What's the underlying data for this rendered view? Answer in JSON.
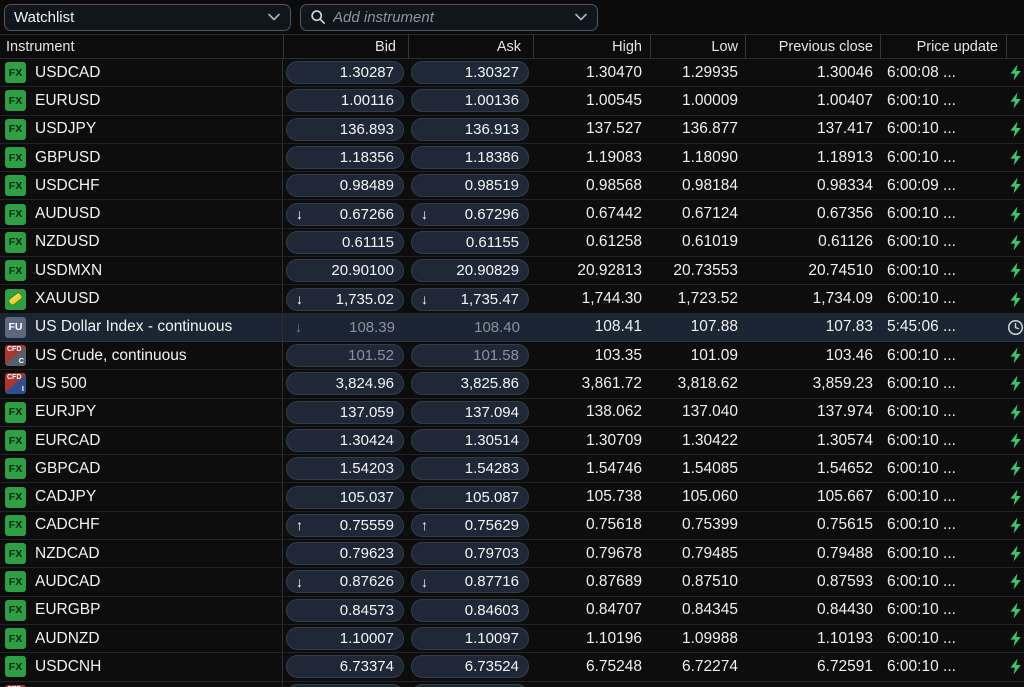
{
  "toolbar": {
    "watchlist_label": "Watchlist",
    "search_placeholder": "Add instrument"
  },
  "colors": {
    "fx_badge_green": "#2f9e44",
    "live_bolt_green": "#3ec46d",
    "stale_text_gray": "#8a929e",
    "selected_row_bg": "#1c2633",
    "quote_button_bg": "#1e2836",
    "cfd_badge_red": "#a83732",
    "cfd_badge_blue": "#2f4d8f",
    "fu_badge_slate": "#5d6880",
    "gold_bar_yellow": "#f2cf1f"
  },
  "table": {
    "columns": [
      "Instrument",
      "Bid",
      "Ask",
      "High",
      "Low",
      "Previous close",
      "Price update"
    ],
    "rows": [
      {
        "badge": {
          "type": "fx",
          "text": "FX"
        },
        "name": "USDCAD",
        "bid_arrow": "",
        "bid": "1.30287",
        "ask_arrow": "",
        "ask": "1.30327",
        "high": "1.30470",
        "low": "1.29935",
        "prev_close": "1.30046",
        "time": "6:00:08 ...",
        "status": "live",
        "stale": false,
        "flat": false,
        "selected": false
      },
      {
        "badge": {
          "type": "fx",
          "text": "FX"
        },
        "name": "EURUSD",
        "bid_arrow": "",
        "bid": "1.00116",
        "ask_arrow": "",
        "ask": "1.00136",
        "high": "1.00545",
        "low": "1.00009",
        "prev_close": "1.00407",
        "time": "6:00:10 ...",
        "status": "live",
        "stale": false,
        "flat": false,
        "selected": false
      },
      {
        "badge": {
          "type": "fx",
          "text": "FX"
        },
        "name": "USDJPY",
        "bid_arrow": "",
        "bid": "136.893",
        "ask_arrow": "",
        "ask": "136.913",
        "high": "137.527",
        "low": "136.877",
        "prev_close": "137.417",
        "time": "6:00:10 ...",
        "status": "live",
        "stale": false,
        "flat": false,
        "selected": false
      },
      {
        "badge": {
          "type": "fx",
          "text": "FX"
        },
        "name": "GBPUSD",
        "bid_arrow": "",
        "bid": "1.18356",
        "ask_arrow": "",
        "ask": "1.18386",
        "high": "1.19083",
        "low": "1.18090",
        "prev_close": "1.18913",
        "time": "6:00:10 ...",
        "status": "live",
        "stale": false,
        "flat": false,
        "selected": false
      },
      {
        "badge": {
          "type": "fx",
          "text": "FX"
        },
        "name": "USDCHF",
        "bid_arrow": "",
        "bid": "0.98489",
        "ask_arrow": "",
        "ask": "0.98519",
        "high": "0.98568",
        "low": "0.98184",
        "prev_close": "0.98334",
        "time": "6:00:09 ...",
        "status": "live",
        "stale": false,
        "flat": false,
        "selected": false
      },
      {
        "badge": {
          "type": "fx",
          "text": "FX"
        },
        "name": "AUDUSD",
        "bid_arrow": "down",
        "bid": "0.67266",
        "ask_arrow": "down",
        "ask": "0.67296",
        "high": "0.67442",
        "low": "0.67124",
        "prev_close": "0.67356",
        "time": "6:00:10 ...",
        "status": "live",
        "stale": false,
        "flat": false,
        "selected": false
      },
      {
        "badge": {
          "type": "fx",
          "text": "FX"
        },
        "name": "NZDUSD",
        "bid_arrow": "",
        "bid": "0.61115",
        "ask_arrow": "",
        "ask": "0.61155",
        "high": "0.61258",
        "low": "0.61019",
        "prev_close": "0.61126",
        "time": "6:00:10 ...",
        "status": "live",
        "stale": false,
        "flat": false,
        "selected": false
      },
      {
        "badge": {
          "type": "fx",
          "text": "FX"
        },
        "name": "USDMXN",
        "bid_arrow": "",
        "bid": "20.90100",
        "ask_arrow": "",
        "ask": "20.90829",
        "high": "20.92813",
        "low": "20.73553",
        "prev_close": "20.74510",
        "time": "6:00:10 ...",
        "status": "live",
        "stale": false,
        "flat": false,
        "selected": false
      },
      {
        "badge": {
          "type": "gold"
        },
        "name": "XAUUSD",
        "bid_arrow": "down",
        "bid": "1,735.02",
        "ask_arrow": "down",
        "ask": "1,735.47",
        "high": "1,744.30",
        "low": "1,723.52",
        "prev_close": "1,734.09",
        "time": "6:00:10 ...",
        "status": "live",
        "stale": false,
        "flat": false,
        "selected": false
      },
      {
        "badge": {
          "type": "fu",
          "text": "FU"
        },
        "name": "US Dollar Index - continuous",
        "bid_arrow": "down",
        "bid": "108.39",
        "ask_arrow": "",
        "ask": "108.40",
        "high": "108.41",
        "low": "107.88",
        "prev_close": "107.83",
        "time": "5:45:06 ...",
        "status": "delayed",
        "stale": true,
        "flat": true,
        "selected": true
      },
      {
        "badge": {
          "type": "cfd",
          "text": "CFD",
          "sub": "C"
        },
        "name": "US Crude, continuous",
        "bid_arrow": "",
        "bid": "101.52",
        "ask_arrow": "",
        "ask": "101.58",
        "high": "103.35",
        "low": "101.09",
        "prev_close": "103.46",
        "time": "6:00:10 ...",
        "status": "live",
        "stale": true,
        "flat": false,
        "selected": false
      },
      {
        "badge": {
          "type": "cfd",
          "text": "CFD",
          "sub": "I"
        },
        "name": "US 500",
        "bid_arrow": "",
        "bid": "3,824.96",
        "ask_arrow": "",
        "ask": "3,825.86",
        "high": "3,861.72",
        "low": "3,818.62",
        "prev_close": "3,859.23",
        "time": "6:00:10 ...",
        "status": "live",
        "stale": false,
        "flat": false,
        "selected": false
      },
      {
        "badge": {
          "type": "fx",
          "text": "FX"
        },
        "name": "EURJPY",
        "bid_arrow": "",
        "bid": "137.059",
        "ask_arrow": "",
        "ask": "137.094",
        "high": "138.062",
        "low": "137.040",
        "prev_close": "137.974",
        "time": "6:00:10 ...",
        "status": "live",
        "stale": false,
        "flat": false,
        "selected": false
      },
      {
        "badge": {
          "type": "fx",
          "text": "FX"
        },
        "name": "EURCAD",
        "bid_arrow": "",
        "bid": "1.30424",
        "ask_arrow": "",
        "ask": "1.30514",
        "high": "1.30709",
        "low": "1.30422",
        "prev_close": "1.30574",
        "time": "6:00:10 ...",
        "status": "live",
        "stale": false,
        "flat": false,
        "selected": false
      },
      {
        "badge": {
          "type": "fx",
          "text": "FX"
        },
        "name": "GBPCAD",
        "bid_arrow": "",
        "bid": "1.54203",
        "ask_arrow": "",
        "ask": "1.54283",
        "high": "1.54746",
        "low": "1.54085",
        "prev_close": "1.54652",
        "time": "6:00:10 ...",
        "status": "live",
        "stale": false,
        "flat": false,
        "selected": false
      },
      {
        "badge": {
          "type": "fx",
          "text": "FX"
        },
        "name": "CADJPY",
        "bid_arrow": "",
        "bid": "105.037",
        "ask_arrow": "",
        "ask": "105.087",
        "high": "105.738",
        "low": "105.060",
        "prev_close": "105.667",
        "time": "6:00:10 ...",
        "status": "live",
        "stale": false,
        "flat": false,
        "selected": false
      },
      {
        "badge": {
          "type": "fx",
          "text": "FX"
        },
        "name": "CADCHF",
        "bid_arrow": "up",
        "bid": "0.75559",
        "ask_arrow": "up",
        "ask": "0.75629",
        "high": "0.75618",
        "low": "0.75399",
        "prev_close": "0.75615",
        "time": "6:00:10 ...",
        "status": "live",
        "stale": false,
        "flat": false,
        "selected": false
      },
      {
        "badge": {
          "type": "fx",
          "text": "FX"
        },
        "name": "NZDCAD",
        "bid_arrow": "",
        "bid": "0.79623",
        "ask_arrow": "",
        "ask": "0.79703",
        "high": "0.79678",
        "low": "0.79485",
        "prev_close": "0.79488",
        "time": "6:00:10 ...",
        "status": "live",
        "stale": false,
        "flat": false,
        "selected": false
      },
      {
        "badge": {
          "type": "fx",
          "text": "FX"
        },
        "name": "AUDCAD",
        "bid_arrow": "down",
        "bid": "0.87626",
        "ask_arrow": "down",
        "ask": "0.87716",
        "high": "0.87689",
        "low": "0.87510",
        "prev_close": "0.87593",
        "time": "6:00:10 ...",
        "status": "live",
        "stale": false,
        "flat": false,
        "selected": false
      },
      {
        "badge": {
          "type": "fx",
          "text": "FX"
        },
        "name": "EURGBP",
        "bid_arrow": "",
        "bid": "0.84573",
        "ask_arrow": "",
        "ask": "0.84603",
        "high": "0.84707",
        "low": "0.84345",
        "prev_close": "0.84430",
        "time": "6:00:10 ...",
        "status": "live",
        "stale": false,
        "flat": false,
        "selected": false
      },
      {
        "badge": {
          "type": "fx",
          "text": "FX"
        },
        "name": "AUDNZD",
        "bid_arrow": "",
        "bid": "1.10007",
        "ask_arrow": "",
        "ask": "1.10097",
        "high": "1.10196",
        "low": "1.09988",
        "prev_close": "1.10193",
        "time": "6:00:10 ...",
        "status": "live",
        "stale": false,
        "flat": false,
        "selected": false
      },
      {
        "badge": {
          "type": "fx",
          "text": "FX"
        },
        "name": "USDCNH",
        "bid_arrow": "",
        "bid": "6.73374",
        "ask_arrow": "",
        "ask": "6.73524",
        "high": "6.75248",
        "low": "6.72274",
        "prev_close": "6.72591",
        "time": "6:00:10 ...",
        "status": "live",
        "stale": false,
        "flat": false,
        "selected": false
      }
    ],
    "partial_row": {
      "badge": {
        "type": "cfd",
        "text": "CFD",
        "sub": "C"
      }
    }
  }
}
